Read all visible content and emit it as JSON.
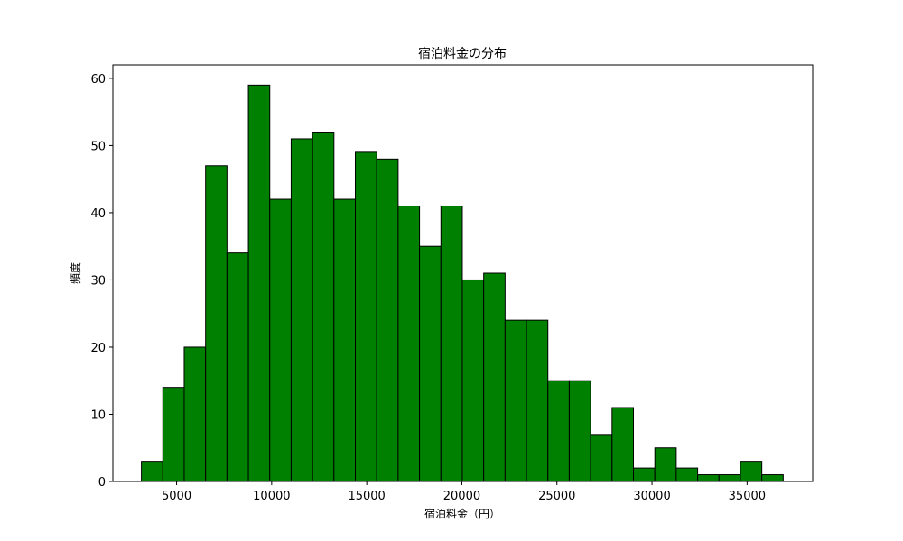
{
  "chart_data": {
    "type": "bar",
    "title": "宿泊料金の分布",
    "xlabel": "宿泊料金（円）",
    "ylabel": "頻度",
    "xlim": [
      1650,
      38450
    ],
    "ylim": [
      0,
      62
    ],
    "x_ticks": [
      5000,
      10000,
      15000,
      20000,
      25000,
      30000,
      35000
    ],
    "y_ticks": [
      0,
      10,
      20,
      30,
      40,
      50,
      60
    ],
    "bin_start": 3150,
    "bin_width": 1125,
    "values": [
      3,
      14,
      20,
      47,
      34,
      59,
      42,
      51,
      52,
      42,
      49,
      48,
      41,
      35,
      41,
      30,
      31,
      24,
      24,
      15,
      15,
      7,
      11,
      2,
      5,
      2,
      1,
      1,
      3,
      1
    ],
    "bar_color": "#008000",
    "edge_color": "#000000",
    "grid": false,
    "legend": "none"
  }
}
